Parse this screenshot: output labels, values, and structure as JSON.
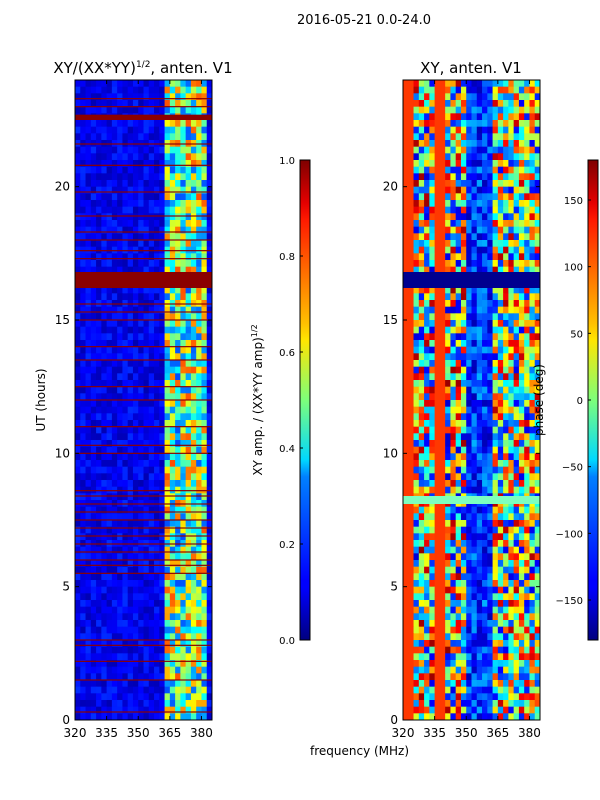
{
  "suptitle": "2016-05-21 0.0-24.0",
  "common_xlabel": "frequency (MHz)",
  "chart_data": [
    {
      "type": "heatmap",
      "title_main": "XY/(XX*YY)",
      "title_exp": "1/2",
      "title_suffix": ", anten. V1",
      "ylabel": "UT (hours)",
      "xlim": [
        320,
        385
      ],
      "ylim": [
        0,
        24
      ],
      "xticks": [
        320,
        335,
        350,
        365,
        380
      ],
      "yticks": [
        0,
        5,
        10,
        15,
        20
      ],
      "colorbar": {
        "label_main": "XY amp. / (XX*YY amp)",
        "label_exp": "1/2",
        "range": [
          0,
          1
        ],
        "ticks": [
          "0.0",
          "0.2",
          "0.4",
          "0.6",
          "0.8",
          "1.0"
        ],
        "colormap": "jet"
      },
      "features": {
        "background_value": 0.12,
        "saturated_bands_ut": [
          [
            16.2,
            16.8
          ],
          [
            22.5,
            22.7
          ]
        ],
        "thin_high_lines_ut": [
          0.3,
          1.5,
          2.2,
          2.8,
          3.0,
          5.5,
          5.8,
          6.0,
          6.3,
          6.6,
          6.9,
          7.2,
          7.5,
          7.8,
          8.1,
          8.4,
          8.6,
          10.0,
          10.3,
          11.0,
          12.0,
          12.5,
          13.5,
          14.0,
          15.0,
          15.3,
          15.6,
          17.3,
          17.6,
          18.0,
          18.3,
          18.9,
          19.8,
          20.8,
          21.6,
          23.0,
          23.3
        ],
        "active_freq_range_mhz": [
          362,
          382
        ]
      }
    },
    {
      "type": "heatmap",
      "title_main": "XY, anten. V1",
      "ylabel": "",
      "xlim": [
        320,
        385
      ],
      "ylim": [
        0,
        24
      ],
      "xticks": [
        320,
        335,
        350,
        365,
        380
      ],
      "yticks": [
        0,
        5,
        10,
        15,
        20
      ],
      "colorbar": {
        "label_main": "phase (deg)",
        "range": [
          -180,
          180
        ],
        "ticks": [
          "−150",
          "−100",
          "−50",
          "0",
          "50",
          "100",
          "150"
        ],
        "tick_values": [
          -150,
          -100,
          -50,
          0,
          50,
          100,
          150
        ],
        "colormap": "jet"
      },
      "features": {
        "dark_band_ut": [
          16.2,
          16.8
        ],
        "light_band_ut": [
          8.1,
          8.4
        ]
      }
    }
  ]
}
